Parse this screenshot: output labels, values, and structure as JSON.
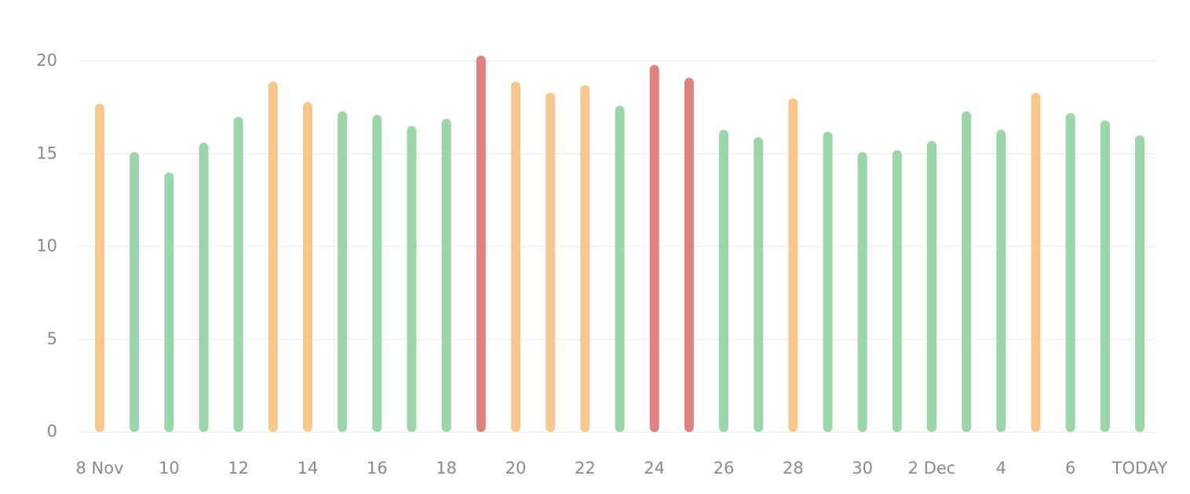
{
  "chart_data": {
    "type": "bar",
    "categories": [
      "8 Nov",
      null,
      "10",
      null,
      "12",
      null,
      "14",
      null,
      "16",
      null,
      "18",
      null,
      "20",
      null,
      "22",
      null,
      "24",
      null,
      "26",
      null,
      "28",
      null,
      "30",
      null,
      "2 Dec",
      null,
      "4",
      null,
      "6",
      null,
      "TODAY"
    ],
    "values": [
      17.7,
      15.1,
      14.0,
      15.6,
      17.0,
      18.9,
      17.8,
      17.3,
      17.1,
      16.5,
      16.9,
      20.3,
      18.9,
      18.3,
      18.7,
      17.6,
      19.8,
      19.1,
      16.3,
      15.9,
      18.0,
      16.2,
      15.1,
      15.2,
      15.7,
      17.3,
      16.3,
      18.3,
      17.2,
      16.8,
      16.0
    ],
    "colors": [
      "#f7c78d",
      "#9ad6aa",
      "#9ad6aa",
      "#9ad6aa",
      "#9ad6aa",
      "#f7c78d",
      "#f7c78d",
      "#9ad6aa",
      "#9ad6aa",
      "#9ad6aa",
      "#9ad6aa",
      "#e0827f",
      "#f7c78d",
      "#f7c78d",
      "#f7c78d",
      "#9ad6aa",
      "#e0827f",
      "#e0827f",
      "#9ad6aa",
      "#9ad6aa",
      "#f7c78d",
      "#9ad6aa",
      "#9ad6aa",
      "#9ad6aa",
      "#9ad6aa",
      "#9ad6aa",
      "#9ad6aa",
      "#f7c78d",
      "#9ad6aa",
      "#9ad6aa",
      "#9ad6aa"
    ],
    "ylim": [
      0,
      21
    ],
    "yticks": [
      0,
      5,
      10,
      15,
      20
    ],
    "grid": true
  }
}
